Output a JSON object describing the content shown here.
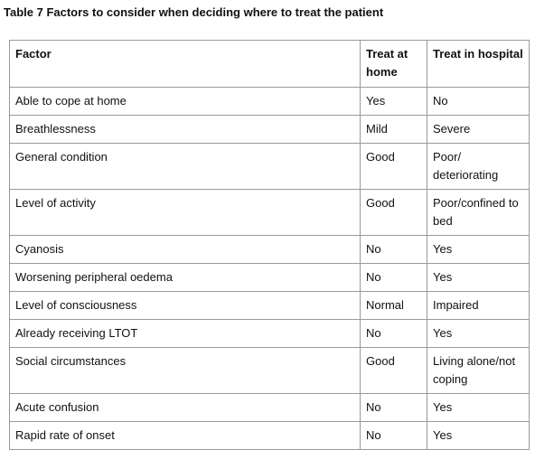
{
  "header": {
    "title": "Table 7 Factors to consider when deciding where to treat the patient"
  },
  "table": {
    "columns": [
      "Factor",
      "Treat at home",
      "Treat in hospital"
    ],
    "rows": [
      [
        "Able to cope at home",
        "Yes",
        "No"
      ],
      [
        "Breathlessness",
        "Mild",
        "Severe"
      ],
      [
        "General condition",
        "Good",
        "Poor/ deteriorating"
      ],
      [
        "Level of activity",
        "Good",
        "Poor/confined to bed"
      ],
      [
        "Cyanosis",
        "No",
        "Yes"
      ],
      [
        "Worsening peripheral oedema",
        "No",
        "Yes"
      ],
      [
        "Level of consciousness",
        "Normal",
        "Impaired"
      ],
      [
        "Already receiving LTOT",
        "No",
        "Yes"
      ],
      [
        "Social circumstances",
        "Good",
        "Living alone/not coping"
      ],
      [
        "Acute confusion",
        "No",
        "Yes"
      ],
      [
        "Rapid rate of onset",
        "No",
        "Yes"
      ]
    ]
  }
}
